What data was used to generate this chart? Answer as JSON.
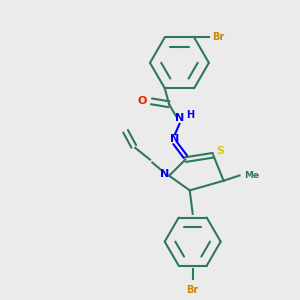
{
  "background_color": "#ebebeb",
  "bond_color": "#2d7a5a",
  "nitrogen_color": "#0000ee",
  "oxygen_color": "#ee2200",
  "sulfur_color": "#ddcc00",
  "bromine_color": "#cc8800",
  "linewidth": 1.5,
  "figsize": [
    3.0,
    3.0
  ],
  "dpi": 100,
  "xlim": [
    0,
    10
  ],
  "ylim": [
    0,
    10
  ]
}
